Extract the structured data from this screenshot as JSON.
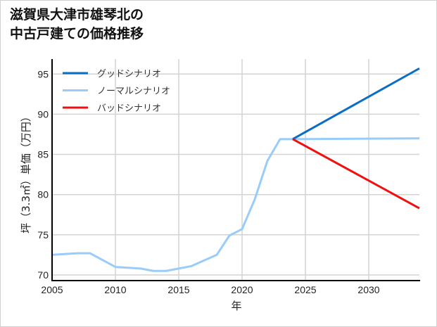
{
  "title_lines": [
    "滋賀県大津市雄琴北の",
    "中古戸建ての価格推移"
  ],
  "chart_data": {
    "type": "line",
    "title": "滋賀県大津市雄琴北の中古戸建ての価格推移",
    "xlabel": "年",
    "ylabel": "坪（3.3㎡）単価（万円）",
    "xlim": [
      2005,
      2034
    ],
    "ylim": [
      69.3,
      97
    ],
    "xticks": [
      2005,
      2010,
      2015,
      2020,
      2025,
      2030
    ],
    "yticks": [
      70,
      75,
      80,
      85,
      90,
      95
    ],
    "grid": true,
    "legend_position": "upper left",
    "series": [
      {
        "name": "グッドシナリオ",
        "color": "#0a6fc2",
        "x": [
          2024,
          2034
        ],
        "y": [
          86.9,
          95.7
        ]
      },
      {
        "name": "ノーマルシナリオ",
        "color": "#99ccf8",
        "x": [
          2005,
          2007,
          2008,
          2010,
          2012,
          2013,
          2014,
          2016,
          2018,
          2019,
          2020,
          2021,
          2022,
          2023,
          2024,
          2034
        ],
        "y": [
          72.5,
          72.7,
          72.7,
          71.0,
          70.8,
          70.5,
          70.5,
          71.1,
          72.5,
          74.9,
          75.7,
          79.4,
          84.2,
          86.9,
          86.9,
          87.0
        ]
      },
      {
        "name": "バッドシナリオ",
        "color": "#ee1111",
        "x": [
          2024,
          2034
        ],
        "y": [
          86.9,
          78.3
        ]
      }
    ]
  }
}
